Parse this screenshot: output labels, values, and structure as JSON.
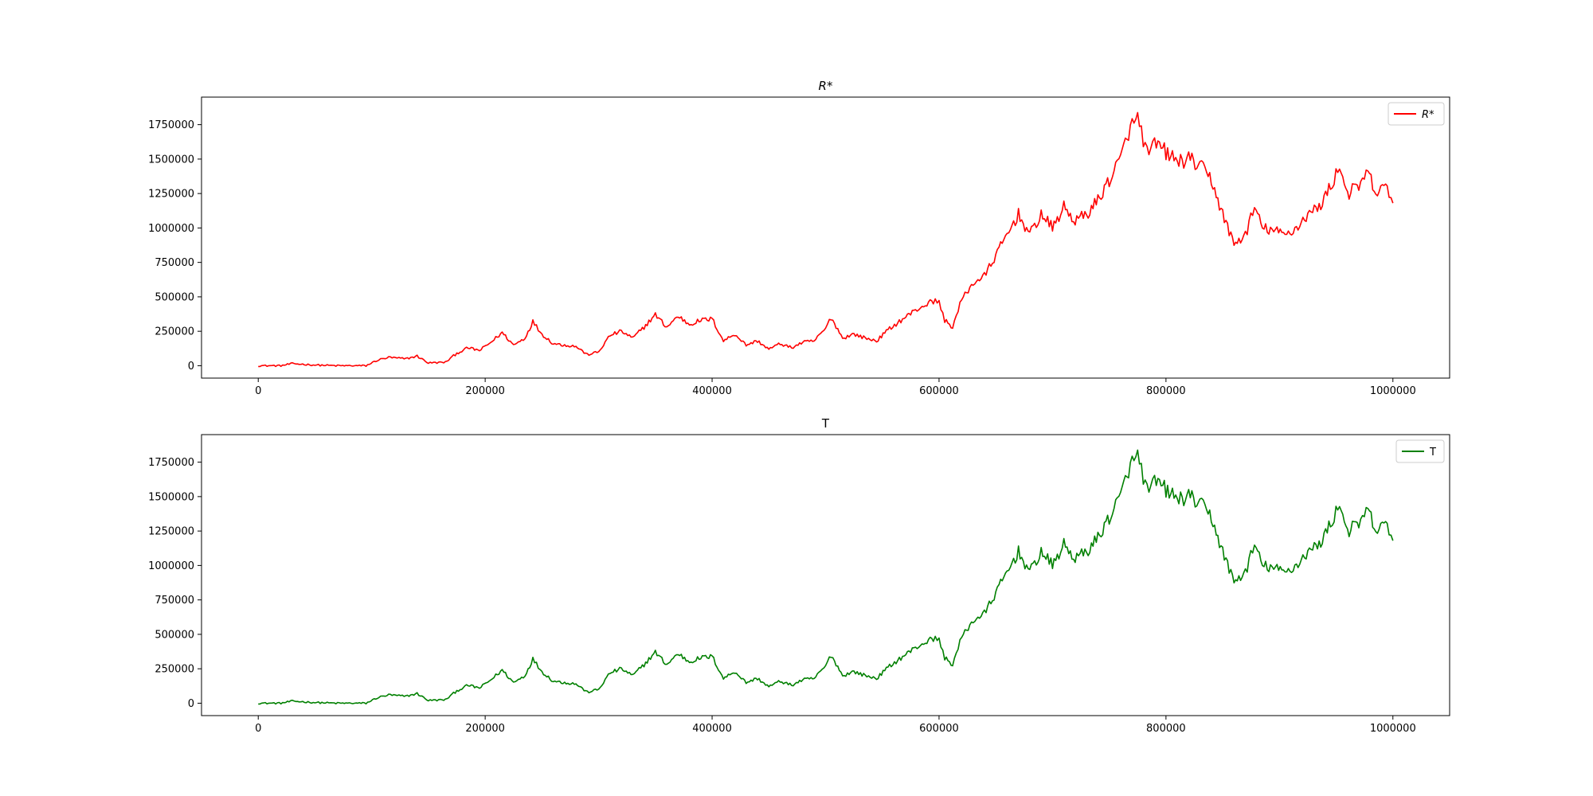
{
  "chart_data": [
    {
      "type": "line",
      "title": "R*",
      "xlabel": "",
      "ylabel": "",
      "xlim": [
        -50000,
        1050000
      ],
      "ylim": [
        -90000,
        1950000
      ],
      "xticks": [
        0,
        200000,
        400000,
        600000,
        800000,
        1000000
      ],
      "xtick_labels": [
        "0",
        "200000",
        "400000",
        "600000",
        "800000",
        "1000000"
      ],
      "yticks": [
        0,
        250000,
        500000,
        750000,
        1000000,
        1250000,
        1500000,
        1750000
      ],
      "ytick_labels": [
        "0",
        "250000",
        "500000",
        "750000",
        "1000000",
        "1250000",
        "1500000",
        "1750000"
      ],
      "grid": false,
      "legend": "top-right",
      "series": [
        {
          "name": "R*",
          "color": "#ff0000",
          "x": [
            0,
            20000,
            30000,
            50000,
            70000,
            95000,
            105000,
            115000,
            130000,
            140000,
            150000,
            165000,
            175000,
            185000,
            195000,
            205000,
            215000,
            225000,
            235000,
            242000,
            250000,
            260000,
            270000,
            280000,
            290000,
            300000,
            310000,
            320000,
            330000,
            340000,
            350000,
            360000,
            370000,
            380000,
            390000,
            400000,
            410000,
            420000,
            430000,
            440000,
            450000,
            460000,
            470000,
            480000,
            490000,
            500000,
            505000,
            515000,
            525000,
            535000,
            545000,
            555000,
            565000,
            575000,
            585000,
            595000,
            600000,
            605000,
            612000,
            620000,
            630000,
            640000,
            650000,
            660000,
            670000,
            680000,
            690000,
            700000,
            710000,
            720000,
            730000,
            740000,
            750000,
            760000,
            767000,
            775000,
            780000,
            785000,
            790000,
            800000,
            810000,
            820000,
            830000,
            840000,
            850000,
            860000,
            870000,
            878000,
            885000,
            895000,
            905000,
            915000,
            925000,
            935000,
            945000,
            953000,
            960000,
            970000,
            978000,
            985000,
            995000,
            1000000
          ],
          "y": [
            0,
            0,
            15000,
            5000,
            0,
            0,
            40000,
            60000,
            50000,
            70000,
            20000,
            25000,
            90000,
            130000,
            110000,
            170000,
            240000,
            150000,
            200000,
            320000,
            230000,
            160000,
            150000,
            140000,
            80000,
            100000,
            220000,
            250000,
            200000,
            280000,
            370000,
            280000,
            360000,
            300000,
            330000,
            340000,
            180000,
            230000,
            150000,
            180000,
            120000,
            160000,
            130000,
            170000,
            180000,
            270000,
            350000,
            200000,
            230000,
            200000,
            180000,
            260000,
            320000,
            380000,
            430000,
            470000,
            460000,
            330000,
            280000,
            480000,
            600000,
            650000,
            800000,
            950000,
            1100000,
            950000,
            1100000,
            1000000,
            1150000,
            1050000,
            1100000,
            1200000,
            1350000,
            1500000,
            1700000,
            1800000,
            1650000,
            1500000,
            1620000,
            1550000,
            1480000,
            1500000,
            1450000,
            1350000,
            1100000,
            880000,
            950000,
            1150000,
            1000000,
            980000,
            950000,
            1000000,
            1100000,
            1150000,
            1300000,
            1450000,
            1250000,
            1300000,
            1400000,
            1250000,
            1300000,
            1180000
          ]
        }
      ]
    },
    {
      "type": "line",
      "title": "T",
      "xlabel": "",
      "ylabel": "",
      "xlim": [
        -50000,
        1050000
      ],
      "ylim": [
        -90000,
        1950000
      ],
      "xticks": [
        0,
        200000,
        400000,
        600000,
        800000,
        1000000
      ],
      "xtick_labels": [
        "0",
        "200000",
        "400000",
        "600000",
        "800000",
        "1000000"
      ],
      "yticks": [
        0,
        250000,
        500000,
        750000,
        1000000,
        1250000,
        1500000,
        1750000
      ],
      "ytick_labels": [
        "0",
        "250000",
        "500000",
        "750000",
        "1000000",
        "1250000",
        "1500000",
        "1750000"
      ],
      "grid": false,
      "legend": "top-right",
      "series": [
        {
          "name": "T",
          "color": "#008000",
          "x": [
            0,
            20000,
            30000,
            50000,
            70000,
            95000,
            105000,
            115000,
            130000,
            140000,
            150000,
            165000,
            175000,
            185000,
            195000,
            205000,
            215000,
            225000,
            235000,
            242000,
            250000,
            260000,
            270000,
            280000,
            290000,
            300000,
            310000,
            320000,
            330000,
            340000,
            350000,
            360000,
            370000,
            380000,
            390000,
            400000,
            410000,
            420000,
            430000,
            440000,
            450000,
            460000,
            470000,
            480000,
            490000,
            500000,
            505000,
            515000,
            525000,
            535000,
            545000,
            555000,
            565000,
            575000,
            585000,
            595000,
            600000,
            605000,
            612000,
            620000,
            630000,
            640000,
            650000,
            660000,
            670000,
            680000,
            690000,
            700000,
            710000,
            720000,
            730000,
            740000,
            750000,
            760000,
            767000,
            775000,
            780000,
            785000,
            790000,
            800000,
            810000,
            820000,
            830000,
            840000,
            850000,
            860000,
            870000,
            878000,
            885000,
            895000,
            905000,
            915000,
            925000,
            935000,
            945000,
            953000,
            960000,
            970000,
            978000,
            985000,
            995000,
            1000000
          ],
          "y": [
            0,
            0,
            15000,
            5000,
            0,
            0,
            40000,
            60000,
            50000,
            70000,
            20000,
            25000,
            90000,
            130000,
            110000,
            170000,
            240000,
            150000,
            200000,
            320000,
            230000,
            160000,
            150000,
            140000,
            80000,
            100000,
            220000,
            250000,
            200000,
            280000,
            370000,
            280000,
            360000,
            300000,
            330000,
            340000,
            180000,
            230000,
            150000,
            180000,
            120000,
            160000,
            130000,
            170000,
            180000,
            270000,
            350000,
            200000,
            230000,
            200000,
            180000,
            260000,
            320000,
            380000,
            430000,
            470000,
            460000,
            330000,
            280000,
            480000,
            600000,
            650000,
            800000,
            950000,
            1100000,
            950000,
            1100000,
            1000000,
            1150000,
            1050000,
            1100000,
            1200000,
            1350000,
            1500000,
            1700000,
            1800000,
            1650000,
            1500000,
            1620000,
            1550000,
            1480000,
            1500000,
            1450000,
            1350000,
            1100000,
            880000,
            950000,
            1150000,
            1000000,
            980000,
            950000,
            1000000,
            1100000,
            1150000,
            1300000,
            1450000,
            1250000,
            1300000,
            1400000,
            1250000,
            1300000,
            1180000
          ]
        }
      ]
    }
  ]
}
